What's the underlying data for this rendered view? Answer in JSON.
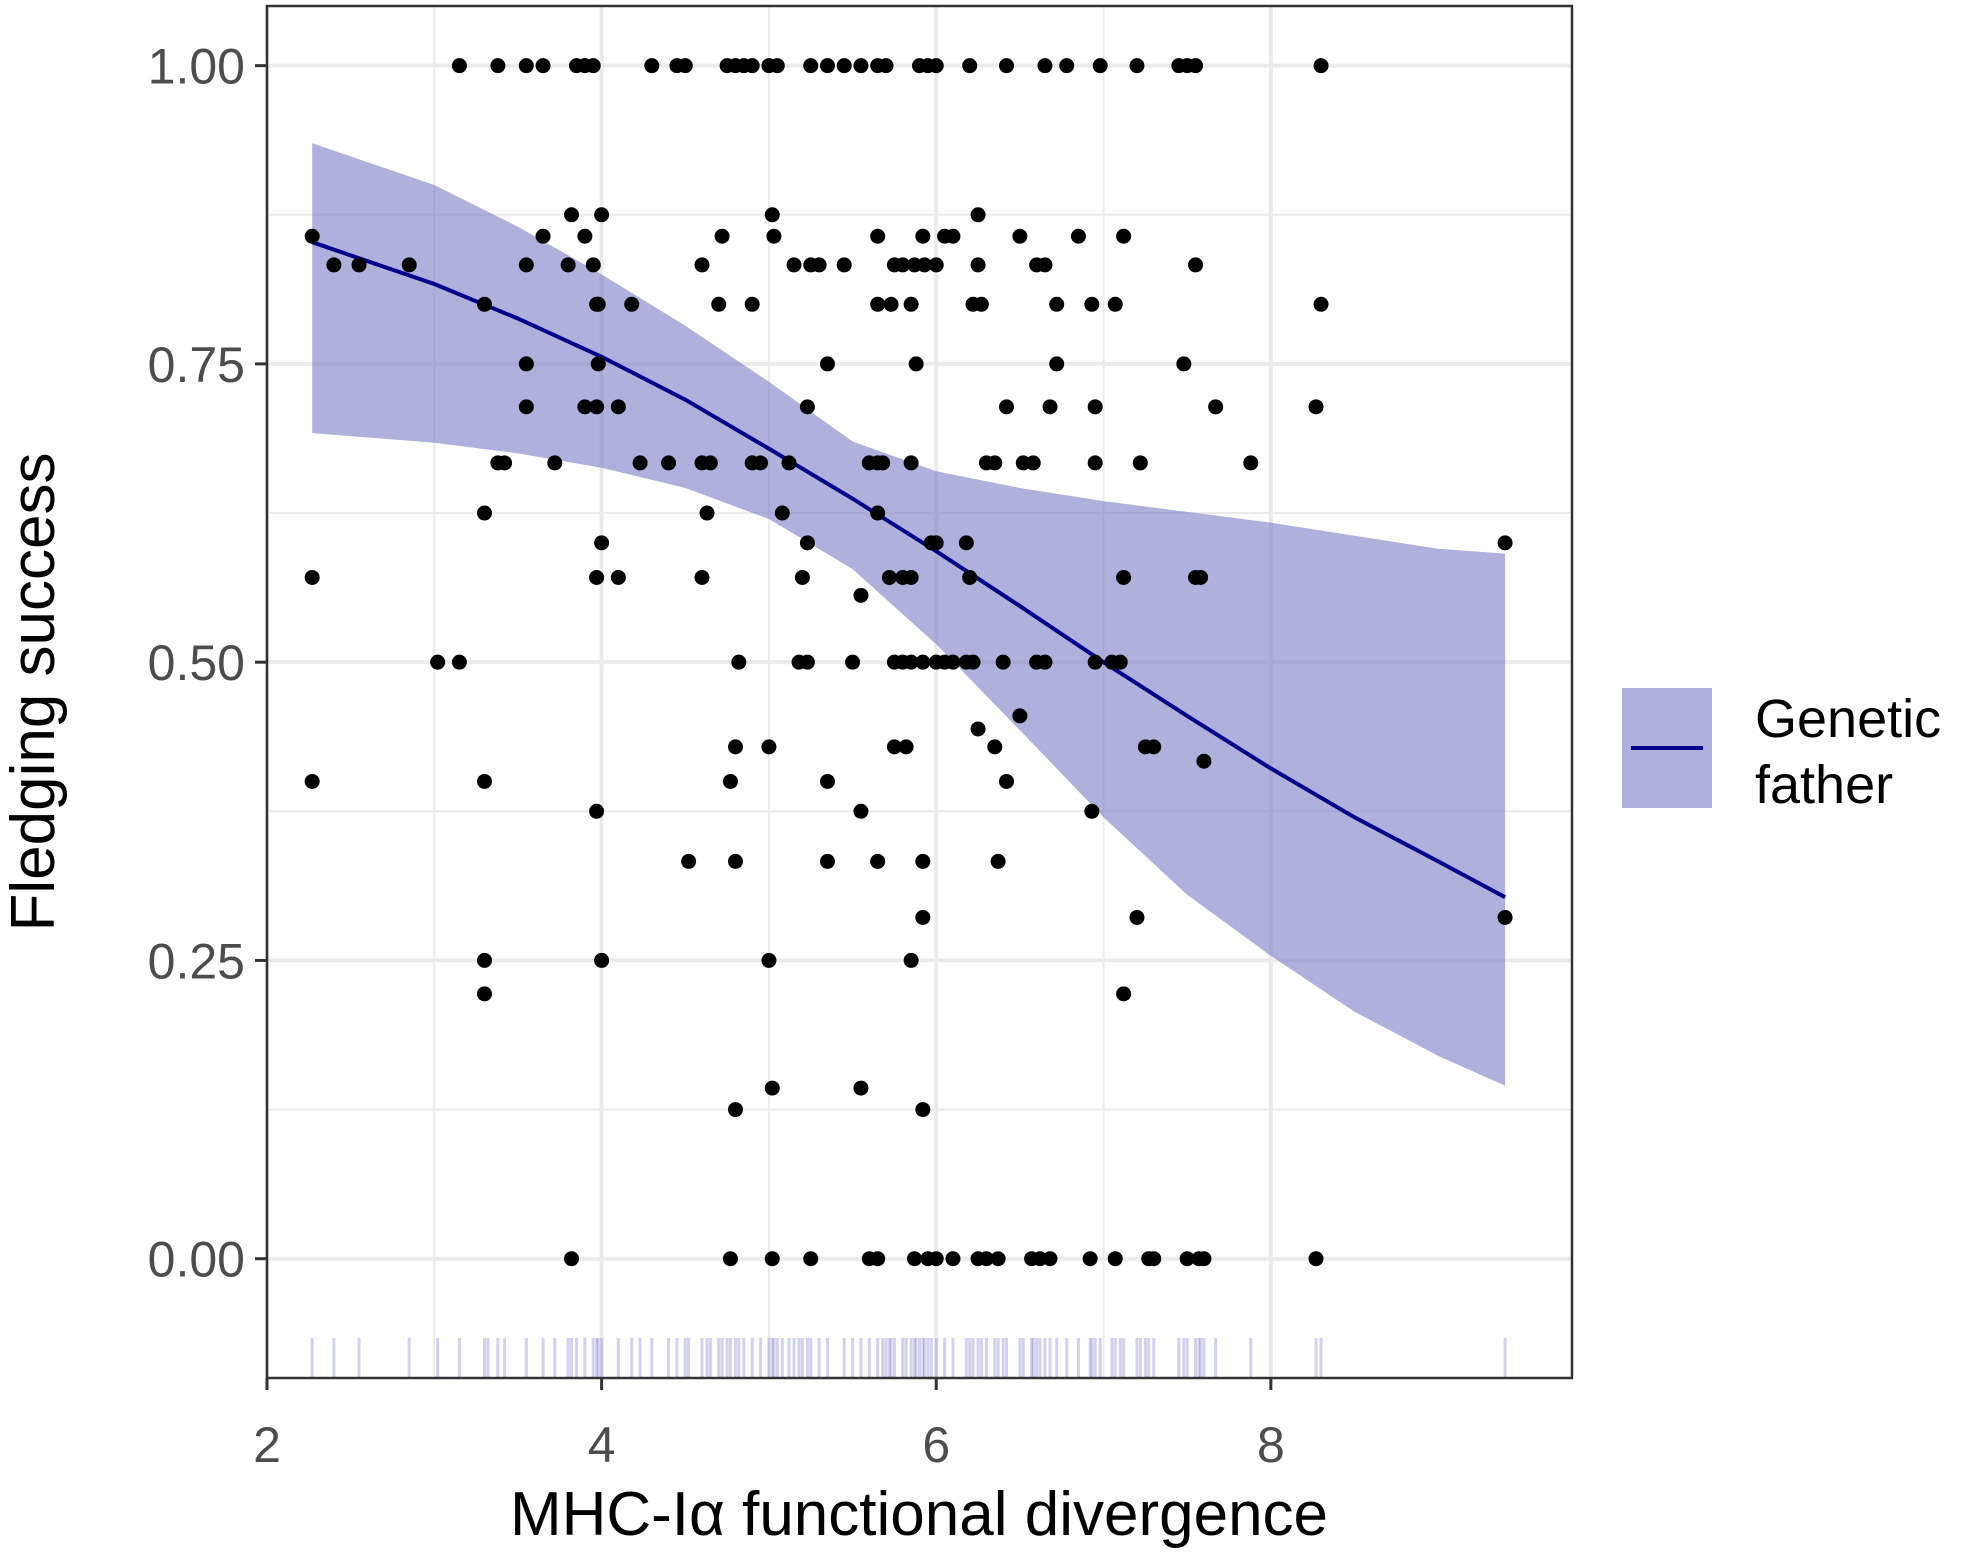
{
  "chart_data": {
    "type": "scatter",
    "xlabel": "MHC-Iα functional divergence",
    "ylabel": "Fledging success",
    "xlim": [
      2.0,
      9.8
    ],
    "ylim": [
      -0.1,
      1.05
    ],
    "x_ticks": [
      2,
      4,
      6,
      8
    ],
    "x_tick_labels": [
      "2",
      "4",
      "6",
      "8"
    ],
    "y_ticks": [
      0,
      0.25,
      0.5,
      0.75,
      1
    ],
    "y_tick_labels": [
      "0.00",
      "0.25",
      "0.50",
      "0.75",
      "1.00"
    ],
    "grid": true,
    "legend": {
      "position": "right",
      "entries": [
        {
          "label_lines": [
            "Genetic",
            "father"
          ]
        }
      ]
    },
    "colors": {
      "line": "#00008b",
      "ribbon": "#7b7bc4",
      "points": "#000000",
      "rug": "#6a6ac0",
      "grid": "#ebebeb",
      "panel_border": "#333333"
    },
    "fitted_line": {
      "x": [
        2.27,
        3.0,
        3.5,
        4.0,
        4.5,
        5.0,
        5.5,
        6.0,
        6.5,
        7.0,
        7.5,
        8.0,
        8.5,
        9.0,
        9.4
      ],
      "y": [
        0.852,
        0.817,
        0.788,
        0.756,
        0.72,
        0.679,
        0.637,
        0.593,
        0.547,
        0.5,
        0.455,
        0.411,
        0.37,
        0.333,
        0.303
      ]
    },
    "ribbon": {
      "x": [
        2.27,
        3.0,
        3.5,
        4.0,
        4.5,
        5.0,
        5.5,
        6.0,
        6.5,
        7.0,
        7.5,
        8.0,
        8.5,
        9.0,
        9.4
      ],
      "upper": [
        0.935,
        0.9,
        0.865,
        0.825,
        0.782,
        0.735,
        0.685,
        0.66,
        0.646,
        0.635,
        0.626,
        0.617,
        0.606,
        0.595,
        0.591
      ],
      "lower": [
        0.692,
        0.684,
        0.675,
        0.663,
        0.646,
        0.62,
        0.578,
        0.515,
        0.443,
        0.37,
        0.305,
        0.254,
        0.207,
        0.17,
        0.145
      ]
    },
    "points": [
      [
        2.27,
        0.857
      ],
      [
        2.4,
        0.833
      ],
      [
        2.55,
        0.833
      ],
      [
        2.85,
        0.833
      ],
      [
        2.27,
        0.571
      ],
      [
        2.27,
        0.4
      ],
      [
        3.15,
        1.0
      ],
      [
        3.38,
        1.0
      ],
      [
        3.55,
        1.0
      ],
      [
        3.65,
        1.0
      ],
      [
        3.85,
        1.0
      ],
      [
        3.9,
        1.0
      ],
      [
        3.95,
        1.0
      ],
      [
        4.3,
        1.0
      ],
      [
        4.45,
        1.0
      ],
      [
        4.5,
        1.0
      ],
      [
        4.75,
        1.0
      ],
      [
        4.8,
        1.0
      ],
      [
        4.85,
        1.0
      ],
      [
        4.9,
        1.0
      ],
      [
        5.0,
        1.0
      ],
      [
        5.05,
        1.0
      ],
      [
        5.25,
        1.0
      ],
      [
        5.35,
        1.0
      ],
      [
        5.45,
        1.0
      ],
      [
        5.55,
        1.0
      ],
      [
        5.65,
        1.0
      ],
      [
        5.7,
        1.0
      ],
      [
        5.9,
        1.0
      ],
      [
        5.95,
        1.0
      ],
      [
        6.0,
        1.0
      ],
      [
        6.2,
        1.0
      ],
      [
        6.42,
        1.0
      ],
      [
        6.65,
        1.0
      ],
      [
        6.78,
        1.0
      ],
      [
        6.98,
        1.0
      ],
      [
        7.2,
        1.0
      ],
      [
        7.45,
        1.0
      ],
      [
        7.5,
        1.0
      ],
      [
        7.55,
        1.0
      ],
      [
        8.3,
        1.0
      ],
      [
        3.3,
        0.8
      ],
      [
        3.55,
        0.833
      ],
      [
        3.65,
        0.857
      ],
      [
        3.82,
        0.875
      ],
      [
        3.9,
        0.857
      ],
      [
        3.8,
        0.833
      ],
      [
        3.95,
        0.833
      ],
      [
        4.0,
        0.875
      ],
      [
        3.98,
        0.8
      ],
      [
        4.18,
        0.8
      ],
      [
        3.97,
        0.8
      ],
      [
        4.6,
        0.833
      ],
      [
        4.7,
        0.8
      ],
      [
        4.72,
        0.857
      ],
      [
        4.9,
        0.8
      ],
      [
        5.02,
        0.875
      ],
      [
        5.03,
        0.857
      ],
      [
        5.15,
        0.833
      ],
      [
        5.25,
        0.833
      ],
      [
        5.3,
        0.833
      ],
      [
        5.45,
        0.833
      ],
      [
        5.65,
        0.857
      ],
      [
        5.65,
        0.8
      ],
      [
        5.73,
        0.8
      ],
      [
        5.75,
        0.833
      ],
      [
        5.8,
        0.833
      ],
      [
        5.85,
        0.8
      ],
      [
        5.87,
        0.833
      ],
      [
        5.92,
        0.857
      ],
      [
        5.93,
        0.833
      ],
      [
        6.0,
        0.833
      ],
      [
        6.05,
        0.857
      ],
      [
        6.1,
        0.857
      ],
      [
        6.22,
        0.8
      ],
      [
        6.25,
        0.875
      ],
      [
        6.25,
        0.833
      ],
      [
        6.27,
        0.8
      ],
      [
        6.5,
        0.857
      ],
      [
        6.6,
        0.833
      ],
      [
        6.65,
        0.833
      ],
      [
        6.72,
        0.8
      ],
      [
        6.85,
        0.857
      ],
      [
        6.93,
        0.8
      ],
      [
        7.07,
        0.8
      ],
      [
        7.12,
        0.857
      ],
      [
        7.55,
        0.833
      ],
      [
        8.3,
        0.8
      ],
      [
        3.55,
        0.75
      ],
      [
        3.55,
        0.714
      ],
      [
        3.98,
        0.75
      ],
      [
        3.9,
        0.714
      ],
      [
        3.97,
        0.714
      ],
      [
        4.1,
        0.714
      ],
      [
        5.23,
        0.714
      ],
      [
        5.35,
        0.75
      ],
      [
        5.88,
        0.75
      ],
      [
        6.42,
        0.714
      ],
      [
        6.68,
        0.714
      ],
      [
        6.72,
        0.75
      ],
      [
        6.95,
        0.714
      ],
      [
        7.48,
        0.75
      ],
      [
        7.67,
        0.714
      ],
      [
        8.27,
        0.714
      ],
      [
        3.38,
        0.667
      ],
      [
        3.42,
        0.667
      ],
      [
        3.72,
        0.667
      ],
      [
        4.23,
        0.667
      ],
      [
        4.4,
        0.667
      ],
      [
        4.6,
        0.667
      ],
      [
        4.65,
        0.667
      ],
      [
        4.9,
        0.667
      ],
      [
        4.95,
        0.667
      ],
      [
        5.12,
        0.667
      ],
      [
        5.6,
        0.667
      ],
      [
        5.65,
        0.667
      ],
      [
        5.68,
        0.667
      ],
      [
        5.85,
        0.667
      ],
      [
        6.3,
        0.667
      ],
      [
        6.35,
        0.667
      ],
      [
        6.52,
        0.667
      ],
      [
        6.58,
        0.667
      ],
      [
        6.95,
        0.667
      ],
      [
        7.22,
        0.667
      ],
      [
        7.88,
        0.667
      ],
      [
        3.3,
        0.625
      ],
      [
        4.63,
        0.625
      ],
      [
        5.08,
        0.625
      ],
      [
        5.65,
        0.625
      ],
      [
        4.0,
        0.6
      ],
      [
        5.23,
        0.6
      ],
      [
        5.97,
        0.6
      ],
      [
        6.0,
        0.6
      ],
      [
        6.18,
        0.6
      ],
      [
        9.4,
        0.6
      ],
      [
        3.97,
        0.571
      ],
      [
        4.1,
        0.571
      ],
      [
        4.6,
        0.571
      ],
      [
        5.2,
        0.571
      ],
      [
        5.72,
        0.571
      ],
      [
        5.8,
        0.571
      ],
      [
        5.85,
        0.571
      ],
      [
        6.2,
        0.571
      ],
      [
        7.12,
        0.571
      ],
      [
        7.55,
        0.571
      ],
      [
        7.58,
        0.571
      ],
      [
        5.55,
        0.556
      ],
      [
        3.02,
        0.5
      ],
      [
        3.15,
        0.5
      ],
      [
        4.82,
        0.5
      ],
      [
        5.18,
        0.5
      ],
      [
        5.23,
        0.5
      ],
      [
        5.5,
        0.5
      ],
      [
        5.75,
        0.5
      ],
      [
        5.8,
        0.5
      ],
      [
        5.85,
        0.5
      ],
      [
        5.92,
        0.5
      ],
      [
        6.0,
        0.5
      ],
      [
        6.05,
        0.5
      ],
      [
        6.1,
        0.5
      ],
      [
        6.18,
        0.5
      ],
      [
        6.22,
        0.5
      ],
      [
        6.4,
        0.5
      ],
      [
        6.6,
        0.5
      ],
      [
        6.65,
        0.5
      ],
      [
        6.95,
        0.5
      ],
      [
        7.05,
        0.5
      ],
      [
        7.1,
        0.5
      ],
      [
        6.5,
        0.455
      ],
      [
        6.25,
        0.444
      ],
      [
        4.8,
        0.429
      ],
      [
        5.0,
        0.429
      ],
      [
        5.75,
        0.429
      ],
      [
        5.82,
        0.429
      ],
      [
        6.35,
        0.429
      ],
      [
        7.25,
        0.429
      ],
      [
        7.3,
        0.429
      ],
      [
        7.6,
        0.417
      ],
      [
        3.3,
        0.4
      ],
      [
        4.77,
        0.4
      ],
      [
        5.35,
        0.4
      ],
      [
        6.42,
        0.4
      ],
      [
        3.97,
        0.375
      ],
      [
        5.55,
        0.375
      ],
      [
        6.93,
        0.375
      ],
      [
        4.52,
        0.333
      ],
      [
        4.8,
        0.333
      ],
      [
        5.35,
        0.333
      ],
      [
        5.65,
        0.333
      ],
      [
        5.92,
        0.333
      ],
      [
        6.37,
        0.333
      ],
      [
        5.92,
        0.286
      ],
      [
        7.2,
        0.286
      ],
      [
        9.4,
        0.286
      ],
      [
        3.3,
        0.25
      ],
      [
        4.0,
        0.25
      ],
      [
        5.0,
        0.25
      ],
      [
        5.85,
        0.25
      ],
      [
        3.3,
        0.222
      ],
      [
        7.12,
        0.222
      ],
      [
        5.02,
        0.143
      ],
      [
        5.55,
        0.143
      ],
      [
        4.8,
        0.125
      ],
      [
        5.92,
        0.125
      ],
      [
        3.82,
        0.0
      ],
      [
        4.77,
        0.0
      ],
      [
        5.02,
        0.0
      ],
      [
        5.25,
        0.0
      ],
      [
        5.6,
        0.0
      ],
      [
        5.65,
        0.0
      ],
      [
        5.87,
        0.0
      ],
      [
        5.95,
        0.0
      ],
      [
        6.0,
        0.0
      ],
      [
        6.1,
        0.0
      ],
      [
        6.25,
        0.0
      ],
      [
        6.3,
        0.0
      ],
      [
        6.37,
        0.0
      ],
      [
        6.57,
        0.0
      ],
      [
        6.62,
        0.0
      ],
      [
        6.68,
        0.0
      ],
      [
        6.92,
        0.0
      ],
      [
        7.07,
        0.0
      ],
      [
        7.27,
        0.0
      ],
      [
        7.3,
        0.0
      ],
      [
        7.5,
        0.0
      ],
      [
        7.57,
        0.0
      ],
      [
        7.6,
        0.0
      ],
      [
        8.27,
        0.0
      ]
    ],
    "rug_x": [
      2.27,
      2.4,
      2.55,
      2.85,
      3.02,
      3.15,
      3.3,
      3.32,
      3.38,
      3.42,
      3.55,
      3.65,
      3.72,
      3.8,
      3.82,
      3.85,
      3.9,
      3.95,
      3.97,
      3.98,
      4.0,
      4.1,
      4.18,
      4.23,
      4.3,
      4.4,
      4.45,
      4.5,
      4.52,
      4.6,
      4.63,
      4.65,
      4.7,
      4.72,
      4.75,
      4.77,
      4.8,
      4.82,
      4.85,
      4.9,
      4.95,
      5.0,
      5.02,
      5.03,
      5.05,
      5.08,
      5.12,
      5.15,
      5.18,
      5.2,
      5.23,
      5.25,
      5.3,
      5.35,
      5.45,
      5.5,
      5.55,
      5.6,
      5.65,
      5.68,
      5.7,
      5.72,
      5.73,
      5.75,
      5.8,
      5.82,
      5.85,
      5.87,
      5.88,
      5.9,
      5.92,
      5.93,
      5.95,
      5.97,
      6.0,
      6.05,
      6.1,
      6.18,
      6.2,
      6.22,
      6.25,
      6.27,
      6.3,
      6.35,
      6.37,
      6.4,
      6.42,
      6.5,
      6.52,
      6.57,
      6.58,
      6.6,
      6.62,
      6.65,
      6.68,
      6.72,
      6.78,
      6.85,
      6.92,
      6.93,
      6.95,
      6.98,
      7.05,
      7.07,
      7.1,
      7.12,
      7.2,
      7.22,
      7.25,
      7.27,
      7.3,
      7.45,
      7.48,
      7.5,
      7.55,
      7.57,
      7.58,
      7.6,
      7.67,
      7.88,
      8.27,
      8.3,
      9.4
    ]
  }
}
